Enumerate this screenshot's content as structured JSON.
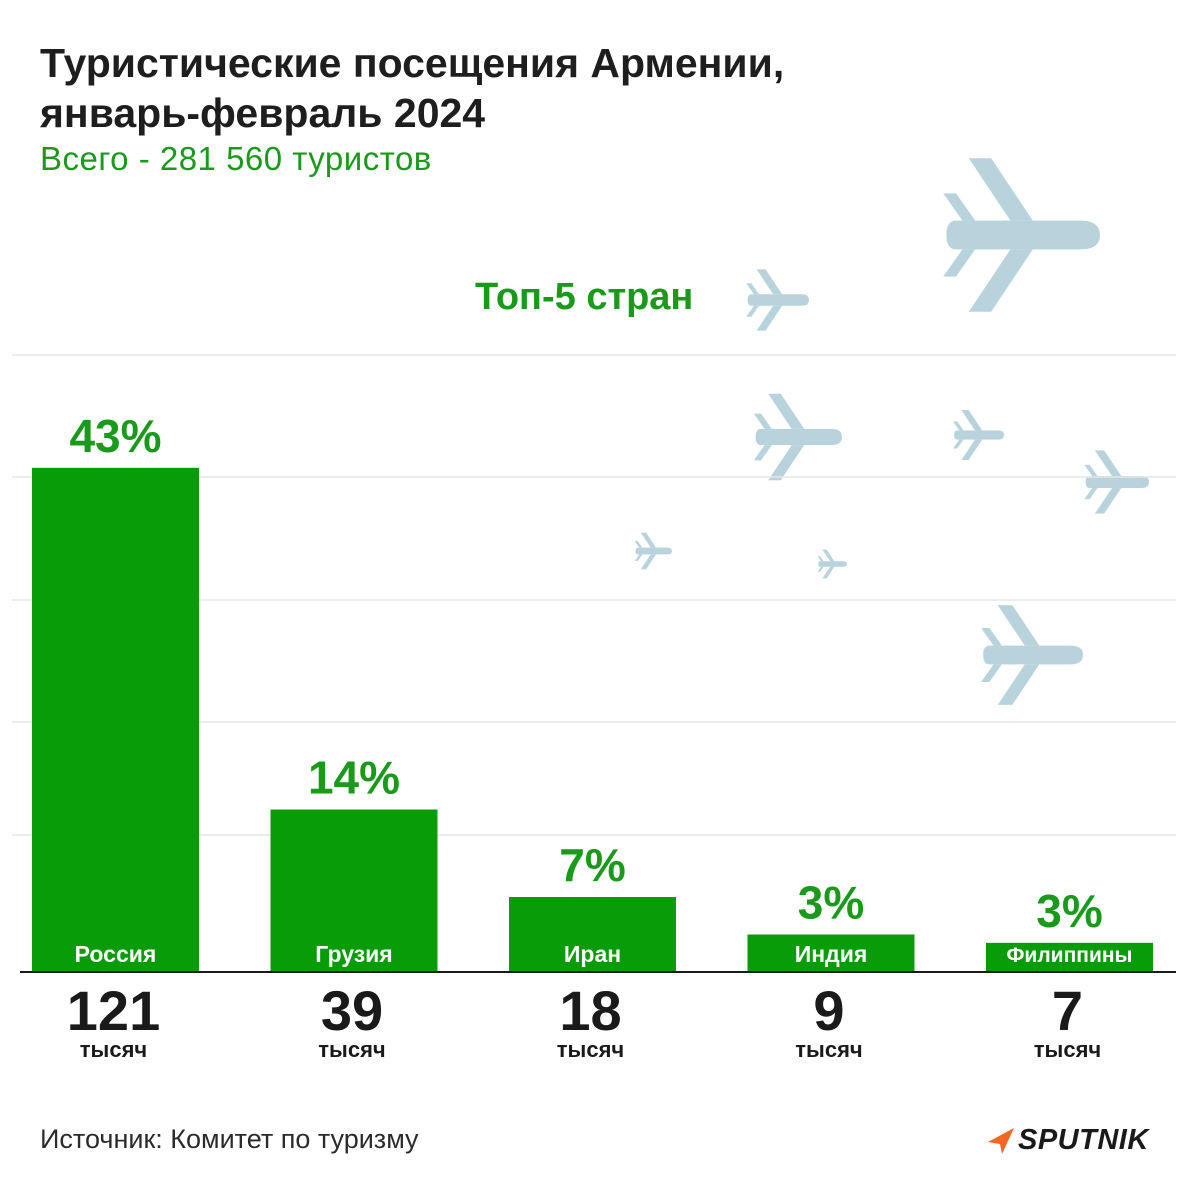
{
  "header": {
    "title_line1": "Туристические посещения Армении,",
    "title_line2": "январь-февраль 2024",
    "subtitle": "Всего - 281 560 туристов",
    "top_label": "Топ-5 стран"
  },
  "footer": {
    "source": "Источник: Комитет по туризму",
    "logo_text": "SPUTNIK"
  },
  "colors": {
    "bar": "#089c08",
    "accent_text": "#1a9a1a",
    "plane": "#b9d3dd",
    "grid": "#e6e6e6",
    "axis": "#1a1a1a"
  },
  "chart_data": {
    "type": "bar",
    "title": "Туристические посещения Армении, январь-февраль 2024",
    "subtitle": "Всего - 281 560 туристов",
    "categories": [
      "Россия",
      "Грузия",
      "Иран",
      "Индия",
      "Филиппины"
    ],
    "values": [
      121,
      39,
      18,
      9,
      7
    ],
    "unit_label": "тысяч",
    "percent_labels": [
      "43%",
      "14%",
      "7%",
      "3%",
      "3%"
    ],
    "ylim": [
      0,
      168
    ],
    "grid": true,
    "xlabel": "",
    "ylabel": ""
  }
}
